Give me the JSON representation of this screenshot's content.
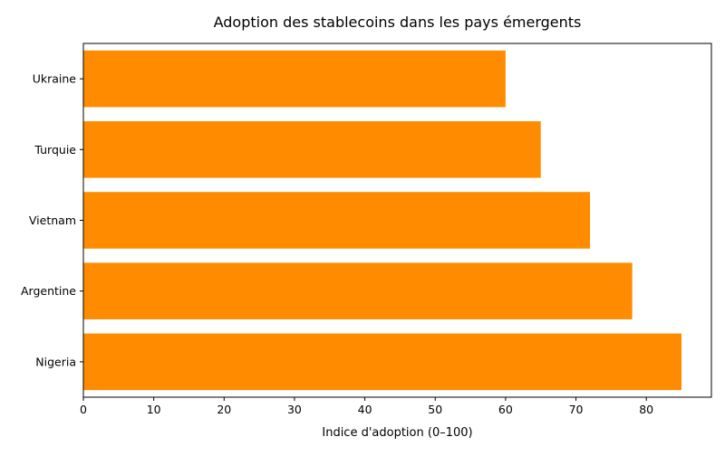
{
  "chart_data": {
    "type": "bar",
    "orientation": "horizontal",
    "title": "Adoption des stablecoins dans les pays émergents",
    "xlabel": "Indice d'adoption (0–100)",
    "ylabel": "",
    "categories": [
      "Nigeria",
      "Argentine",
      "Vietnam",
      "Turquie",
      "Ukraine"
    ],
    "values": [
      85,
      78,
      72,
      65,
      60
    ],
    "xlim": [
      0,
      89.25
    ],
    "xticks": [
      0,
      10,
      20,
      30,
      40,
      50,
      60,
      70,
      80
    ],
    "bar_color": "#ff8c00",
    "grid": false,
    "legend": "none"
  }
}
